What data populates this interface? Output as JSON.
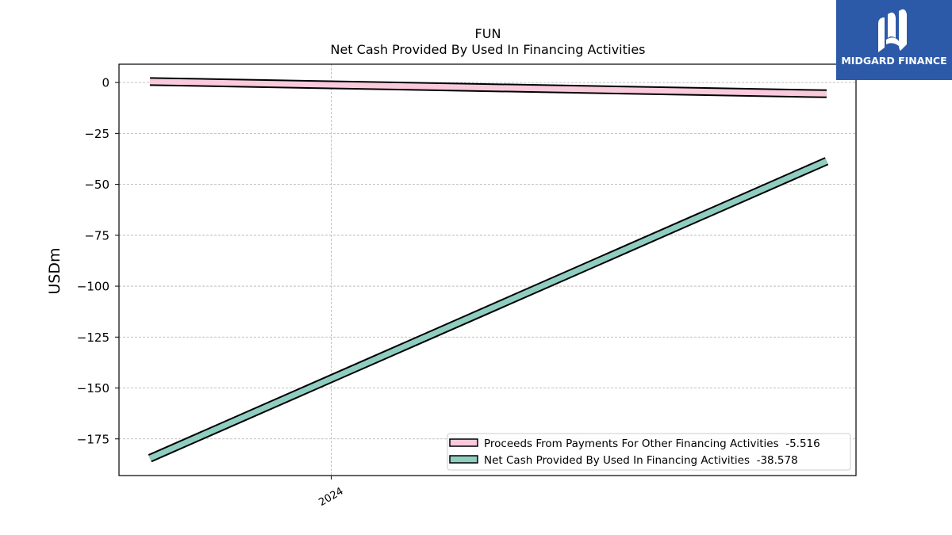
{
  "logo": {
    "text": "MIDGARD FINANCE",
    "bg_color": "#2c5aa8"
  },
  "chart_data": {
    "type": "line",
    "title": "FUN",
    "subtitle": "Net Cash Provided By Used In Financing Activities",
    "ylabel": "USDm",
    "xlabel": "",
    "ylim": [
      -193,
      9
    ],
    "yticks": [
      0,
      -25,
      -50,
      -75,
      -100,
      -125,
      -150,
      -175
    ],
    "ytick_labels": [
      "0",
      "−25",
      "−50",
      "−75",
      "−100",
      "−125",
      "−150",
      "−175"
    ],
    "xticks": [
      {
        "label": "2024",
        "pos": 0.288
      }
    ],
    "grid": true,
    "legend_placement": "lower-right",
    "series": [
      {
        "name": "Proceeds From Payments For Other Financing Activities  -5.516",
        "color": "#f9c9dc",
        "x": [
          0,
          1
        ],
        "values": [
          0.5,
          -5.516
        ]
      },
      {
        "name": "Net Cash Provided By Used In Financing Activities  -38.578",
        "color": "#8ecdc0",
        "x": [
          0,
          1
        ],
        "values": [
          -184.5,
          -38.578
        ]
      }
    ]
  }
}
